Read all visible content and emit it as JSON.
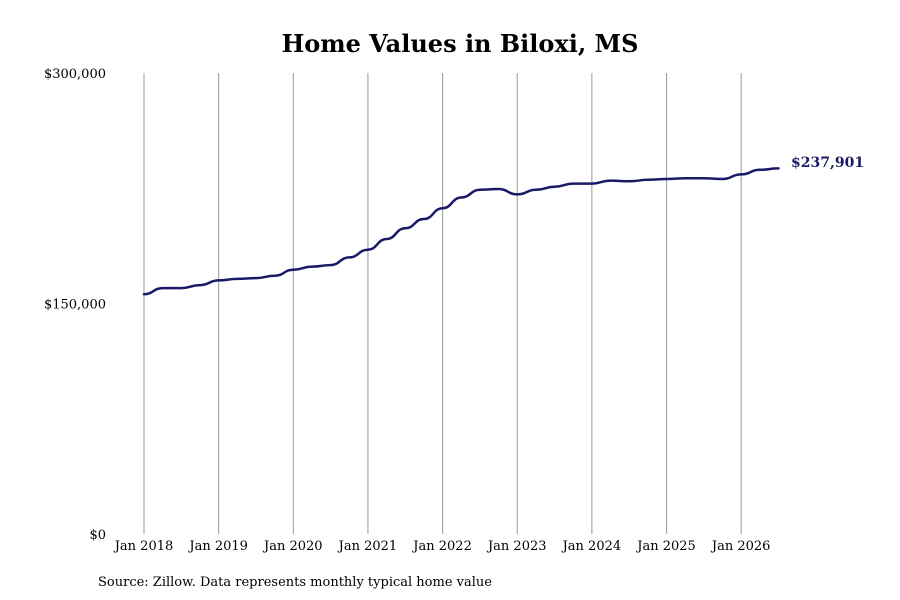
{
  "chart_data": {
    "type": "line",
    "title": "Home Values in Biloxi, MS",
    "source": "Source: Zillow. Data represents monthly typical home value",
    "ylim": [
      0,
      300000
    ],
    "y_tick_labels": [
      "$0",
      "$150,000",
      "$300,000"
    ],
    "y_ticks": [
      0,
      150000,
      300000
    ],
    "x_tick_labels": [
      "Jan 2018",
      "Jan 2019",
      "Jan 2020",
      "Jan 2021",
      "Jan 2022",
      "Jan 2023",
      "Jan 2024",
      "Jan 2025",
      "Jan 2026"
    ],
    "x_ticks": [
      2018,
      2019,
      2020,
      2021,
      2022,
      2023,
      2024,
      2025,
      2026
    ],
    "xlim": [
      2018,
      2026.5
    ],
    "grid": "vertical",
    "line_color": "#1a1a66",
    "end_label": "$237,901",
    "series": [
      {
        "x": [
          2018.0,
          2018.25,
          2018.5,
          2018.75,
          2019.0,
          2019.25,
          2019.5,
          2019.75,
          2020.0,
          2020.25,
          2020.5,
          2020.75,
          2021.0,
          2021.25,
          2021.5,
          2021.75,
          2022.0,
          2022.25,
          2022.5,
          2022.75,
          2023.0,
          2023.25,
          2023.5,
          2023.75,
          2024.0,
          2024.25,
          2024.5,
          2024.75,
          2025.0,
          2025.25,
          2025.5,
          2025.75,
          2026.0,
          2026.25,
          2026.5
        ],
        "values": [
          156000,
          160000,
          160000,
          162000,
          165000,
          166000,
          166500,
          168000,
          172000,
          174000,
          175000,
          180000,
          185000,
          192000,
          199000,
          205000,
          212000,
          219000,
          224000,
          224500,
          221000,
          224000,
          226000,
          228000,
          228000,
          230000,
          229500,
          230500,
          231000,
          231500,
          231500,
          231000,
          234000,
          237000,
          237901
        ]
      }
    ]
  }
}
